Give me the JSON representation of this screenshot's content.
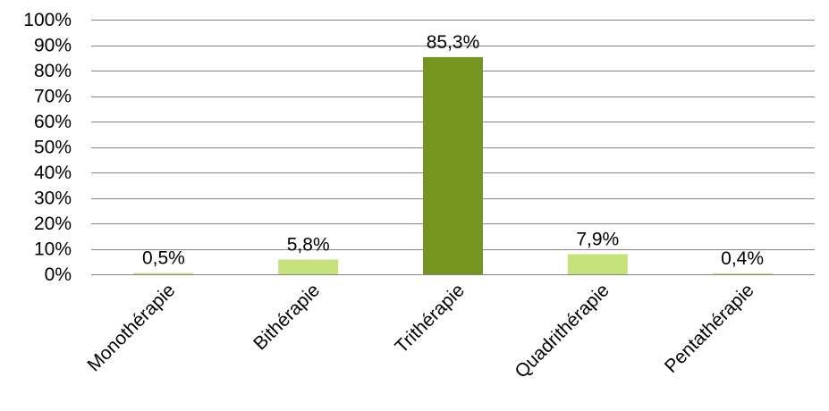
{
  "chart_data": {
    "type": "bar",
    "title": "",
    "xlabel": "",
    "ylabel": "",
    "categories": [
      "Monothérapie",
      "Bithérapie",
      "Trithérapie",
      "Quadrithérapie",
      "Pentathérapie"
    ],
    "values": [
      0.5,
      5.8,
      85.3,
      7.9,
      0.4
    ],
    "value_labels": [
      "0,5%",
      "5,8%",
      "85,3%",
      "7,9%",
      "0,4%"
    ],
    "y_ticks": [
      0,
      10,
      20,
      30,
      40,
      50,
      60,
      70,
      80,
      90,
      100
    ],
    "y_tick_labels": [
      "0%",
      "10%",
      "20%",
      "30%",
      "40%",
      "50%",
      "60%",
      "70%",
      "80%",
      "90%",
      "100%"
    ],
    "ylim": [
      0,
      100
    ],
    "grid": true,
    "legend": "none",
    "colors": {
      "default_bar": "#c6e27a",
      "highlight_bar": "#74951f",
      "highlight_category": "Trithérapie"
    }
  }
}
